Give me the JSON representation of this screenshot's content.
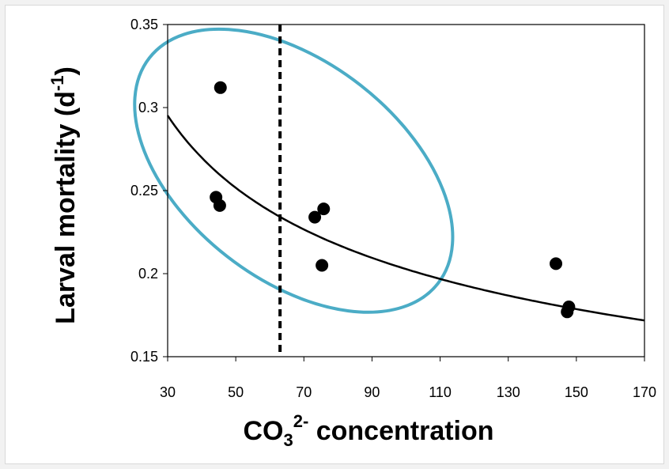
{
  "chart_data": {
    "type": "scatter",
    "xlabel": {
      "main": "CO",
      "sub": "3",
      "sup": "2-",
      "rest": " concentration"
    },
    "ylabel": {
      "main": "Larval mortality (d",
      "sup": "-1",
      "rest": ")"
    },
    "xlim": [
      30,
      170
    ],
    "ylim": [
      0.15,
      0.35
    ],
    "xticks": [
      30,
      50,
      70,
      90,
      110,
      130,
      150,
      170
    ],
    "yticks": [
      0.15,
      0.2,
      0.25,
      0.3,
      0.35
    ],
    "ytick_labels": [
      "0.15",
      "0.2",
      "0.25",
      "0.3",
      "0.35"
    ],
    "points": [
      {
        "x": 45.5,
        "y": 0.312
      },
      {
        "x": 44.2,
        "y": 0.246
      },
      {
        "x": 45.3,
        "y": 0.241
      },
      {
        "x": 73.2,
        "y": 0.234
      },
      {
        "x": 75.8,
        "y": 0.239
      },
      {
        "x": 75.3,
        "y": 0.205
      },
      {
        "x": 144.0,
        "y": 0.206
      },
      {
        "x": 147.8,
        "y": 0.18
      },
      {
        "x": 147.3,
        "y": 0.177
      }
    ],
    "trendline": {
      "type": "power",
      "a": 0.853,
      "b": -0.312
    },
    "reference_line": {
      "x": 63,
      "style": "dashed"
    },
    "highlight_ellipse": {
      "cx": 67,
      "cy": 0.262,
      "rx": 42,
      "ry": 0.043,
      "rotation": 38,
      "color": "#4bacc6"
    },
    "colors": {
      "points": "#000000",
      "trendline": "#000000",
      "axes": "#000000"
    },
    "grid": false,
    "legend": "none"
  }
}
